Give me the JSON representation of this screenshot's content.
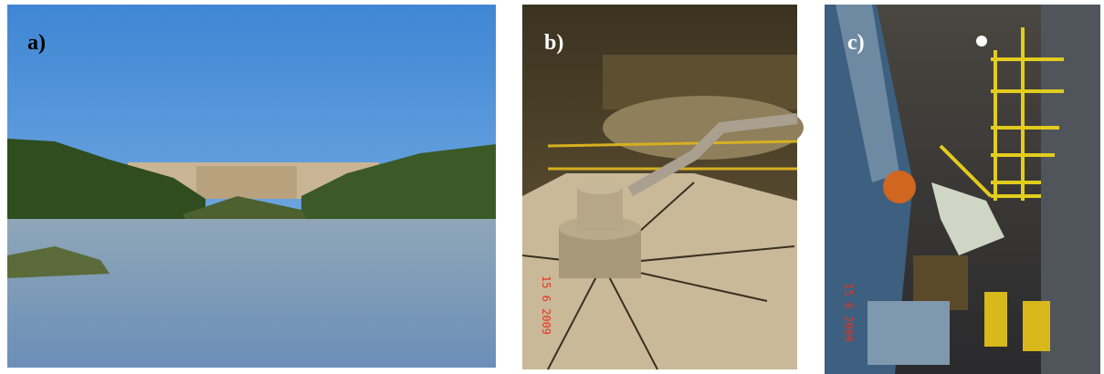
{
  "panels": [
    {
      "label": "a)"
    },
    {
      "label": "b)",
      "date_stamp": "15 6 2009"
    },
    {
      "label": "c)",
      "date_stamp": "15 6 2009"
    }
  ]
}
